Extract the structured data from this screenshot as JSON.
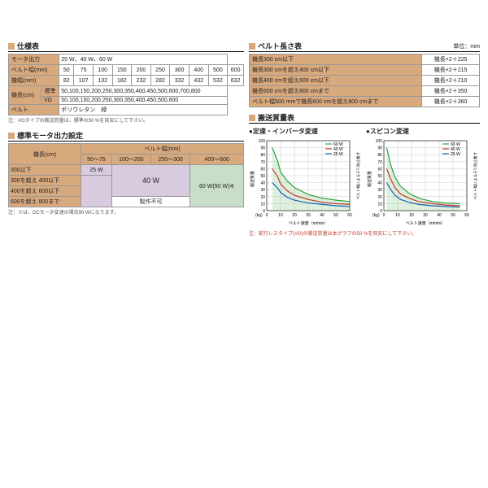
{
  "spec": {
    "title": "仕様表",
    "rows": [
      {
        "label": "モータ出力",
        "vals": [
          "25 W、40 W、60 W"
        ],
        "span": true
      },
      {
        "label": "ベルト幅(mm)",
        "vals": [
          "50",
          "75",
          "100",
          "150",
          "200",
          "250",
          "300",
          "400",
          "500",
          "600"
        ]
      },
      {
        "label": "機幅(mm)",
        "vals": [
          "82",
          "107",
          "132",
          "182",
          "232",
          "282",
          "332",
          "432",
          "532",
          "632"
        ]
      },
      {
        "label": "機長(cm)",
        "sub": [
          {
            "sub": "標準",
            "val": "50,100,150,200,250,300,350,400,450,500,600,700,800"
          },
          {
            "sub": "VG",
            "val": "50,100,150,200,250,300,350,400,450,500,600"
          }
        ]
      },
      {
        "label": "ベルト",
        "vals": [
          "ポリウレタン　緑"
        ],
        "span": true
      }
    ],
    "note": "注：VGタイプの搬送質量は、標準の50 %を目安にして下さい。"
  },
  "motor": {
    "title": "標準モータ出力設定",
    "col_header": "ベルト幅(mm)",
    "row_header": "機長(cm)",
    "col_labels": [
      "50〜75",
      "100〜200",
      "250〜300",
      "400〜600"
    ],
    "rows": [
      {
        "label": "300以下",
        "w25": true
      },
      {
        "label": "300を超え 400以下"
      },
      {
        "label": "400を超え 600以下"
      },
      {
        "label": "600を超え 800まで",
        "first": "製作不可"
      }
    ],
    "val25": "25 W",
    "val40": "40 W",
    "val60": "60 W(90 W)※",
    "note": "注：※は、DCモータ変速の場合90 Wになります。"
  },
  "length": {
    "title": "ベルト長さ表",
    "unit": "単位：mm",
    "rows": [
      [
        "機長300 cm以下",
        "機長×2＋225"
      ],
      [
        "機長300 cmを超え400 cm以下",
        "機長×2＋215"
      ],
      [
        "機長400 cmを超え600 cm以下",
        "機長×2＋210"
      ],
      [
        "機長600 cmを超え800 cmまで",
        "機長×2＋350"
      ],
      [
        "ベルト幅500 mmで機長600 cmを超え800 cmまで",
        "機長×2＋360"
      ]
    ]
  },
  "transport": {
    "title": "搬送質量表",
    "chart1_title": "●定速・インバータ変速",
    "chart2_title": "●スピコン変速",
    "legend": [
      "60 W",
      "40 W",
      "25 W"
    ],
    "colors": {
      "60": "#2aa03a",
      "40": "#c0392b",
      "25": "#1a5fb4"
    },
    "grid": "#bbb",
    "y_max": 100,
    "y_step": 10,
    "y_label": "搬送質量",
    "y_unit": "(kg)",
    "x_label": "ベルト速度（m/min）",
    "x_max_1": 60,
    "x_step_1": 10,
    "x_max_2": 60,
    "x_step_2": 10,
    "note": "注：蛇行レスタイプ(VG)の搬送質量は本グラフの50 %を目安にして下さい。",
    "right_label": "ベルト幅によるそり防止板寸",
    "chart1": {
      "60": [
        [
          4,
          90
        ],
        [
          8,
          70
        ],
        [
          10,
          55
        ],
        [
          15,
          42
        ],
        [
          20,
          33
        ],
        [
          30,
          23
        ],
        [
          40,
          18
        ],
        [
          50,
          15
        ],
        [
          60,
          13
        ]
      ],
      "40": [
        [
          4,
          60
        ],
        [
          8,
          48
        ],
        [
          10,
          38
        ],
        [
          15,
          28
        ],
        [
          20,
          22
        ],
        [
          30,
          16
        ],
        [
          40,
          12
        ],
        [
          50,
          10
        ],
        [
          60,
          9
        ]
      ],
      "25": [
        [
          4,
          40
        ],
        [
          8,
          32
        ],
        [
          10,
          26
        ],
        [
          15,
          19
        ],
        [
          20,
          15
        ],
        [
          30,
          11
        ],
        [
          40,
          9
        ],
        [
          50,
          7
        ],
        [
          60,
          6
        ]
      ]
    },
    "chart2": {
      "60": [
        [
          2,
          90
        ],
        [
          5,
          65
        ],
        [
          8,
          48
        ],
        [
          12,
          35
        ],
        [
          18,
          25
        ],
        [
          25,
          18
        ],
        [
          35,
          13
        ],
        [
          45,
          11
        ],
        [
          55,
          10
        ]
      ],
      "40": [
        [
          2,
          60
        ],
        [
          5,
          45
        ],
        [
          8,
          33
        ],
        [
          12,
          24
        ],
        [
          18,
          18
        ],
        [
          25,
          13
        ],
        [
          35,
          10
        ],
        [
          45,
          8
        ],
        [
          55,
          7
        ]
      ],
      "25": [
        [
          2,
          40
        ],
        [
          5,
          30
        ],
        [
          8,
          22
        ],
        [
          12,
          16
        ],
        [
          18,
          12
        ],
        [
          25,
          9
        ],
        [
          35,
          7
        ],
        [
          45,
          6
        ],
        [
          55,
          5
        ]
      ]
    }
  }
}
